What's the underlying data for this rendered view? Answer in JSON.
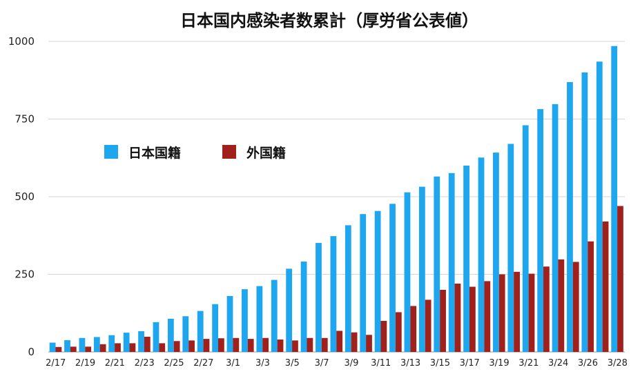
{
  "chart_data": {
    "type": "bar",
    "title": "日本国内感染者数累計（厚労省公表値）",
    "xlabel": "",
    "ylabel": "",
    "ylim": [
      0,
      1000
    ],
    "yticks": [
      "0",
      "250",
      "500",
      "750",
      "1000"
    ],
    "categories": [
      "2/17",
      "2/18",
      "2/19",
      "2/20",
      "2/21",
      "2/22",
      "2/23",
      "2/24",
      "2/25",
      "2/26",
      "2/27",
      "2/28",
      "3/1",
      "3/2",
      "3/3",
      "3/4",
      "3/5",
      "3/6",
      "3/7",
      "3/8",
      "3/9",
      "3/10",
      "3/11",
      "3/12",
      "3/13",
      "3/14",
      "3/15",
      "3/16",
      "3/17",
      "3/18",
      "3/19",
      "3/20",
      "3/21",
      "3/23",
      "3/24",
      "3/25",
      "3/26",
      "3/27",
      "3/28"
    ],
    "xtick_labels": [
      "2/17",
      "",
      "2/19",
      "",
      "2/21",
      "",
      "2/23",
      "",
      "2/25",
      "",
      "2/27",
      "",
      "3/1",
      "",
      "3/3",
      "",
      "3/5",
      "",
      "3/7",
      "",
      "3/9",
      "",
      "3/11",
      "",
      "3/13",
      "",
      "3/15",
      "",
      "3/17",
      "",
      "3/19",
      "",
      "3/21",
      "",
      "3/24",
      "",
      "3/26",
      "",
      "3/28"
    ],
    "grid": true,
    "legend_position": "upper-left",
    "series": [
      {
        "name": "日本国籍",
        "color": "#1ea6ee",
        "values": [
          30,
          38,
          45,
          48,
          54,
          62,
          67,
          96,
          107,
          115,
          132,
          154,
          180,
          202,
          212,
          232,
          268,
          291,
          351,
          373,
          408,
          444,
          454,
          477,
          514,
          532,
          565,
          576,
          600,
          626,
          642,
          670,
          730,
          782,
          798,
          869,
          900,
          935,
          985
        ]
      },
      {
        "name": "外国籍",
        "color": "#a0211b",
        "values": [
          16,
          17,
          17,
          25,
          28,
          28,
          49,
          28,
          35,
          37,
          42,
          44,
          45,
          42,
          45,
          40,
          37,
          45,
          45,
          68,
          63,
          55,
          100,
          128,
          148,
          168,
          200,
          220,
          210,
          228,
          250,
          258,
          252,
          275,
          298,
          290,
          356,
          420,
          470
        ]
      }
    ]
  }
}
